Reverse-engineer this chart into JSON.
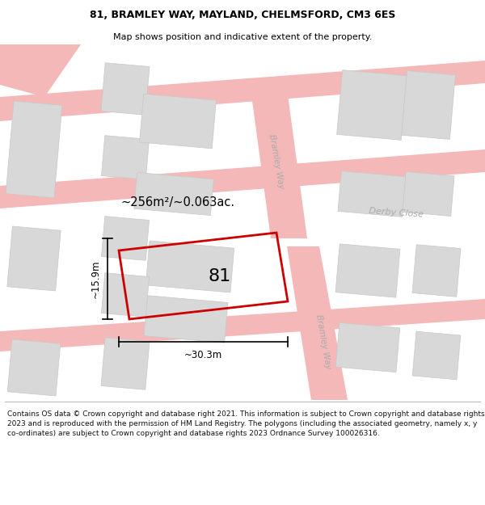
{
  "title_line1": "81, BRAMLEY WAY, MAYLAND, CHELMSFORD, CM3 6ES",
  "title_line2": "Map shows position and indicative extent of the property.",
  "footer_text": "Contains OS data © Crown copyright and database right 2021. This information is subject to Crown copyright and database rights 2023 and is reproduced with the permission of HM Land Registry. The polygons (including the associated geometry, namely x, y co-ordinates) are subject to Crown copyright and database rights 2023 Ordnance Survey 100026316.",
  "area_label": "~256m²/~0.063ac.",
  "width_label": "~30.3m",
  "height_label": "~15.9m",
  "property_number": "81",
  "bg_color": "#ffffff",
  "map_bg": "#f5f5f5",
  "road_color": "#f5b8b8",
  "building_color": "#d8d8d8",
  "building_edge": "#c8c8c8",
  "property_outline_color": "#cc0000",
  "street_color": "#aaaaaa",
  "street_label_bw1": "Bramley Way",
  "street_label_bw2": "Bramley Way",
  "street_label_dc": "Derby Close",
  "title_fontsize": 9,
  "subtitle_fontsize": 8,
  "footer_fontsize": 6.5
}
